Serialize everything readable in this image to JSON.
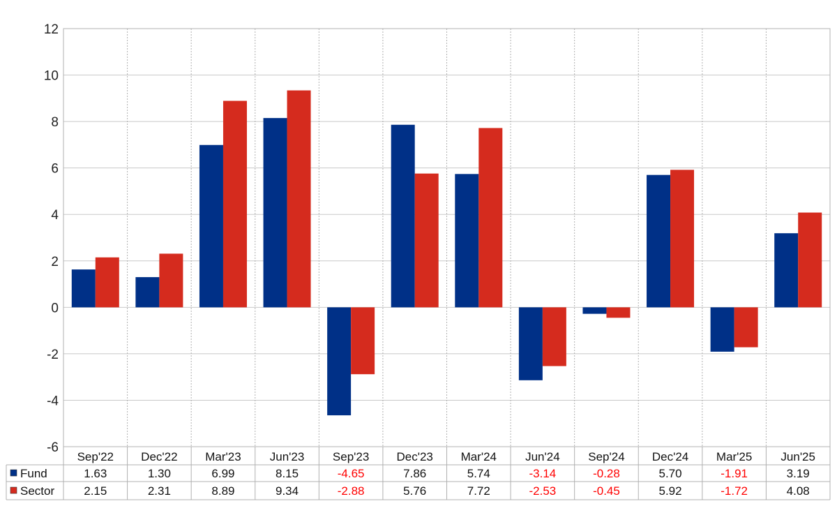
{
  "chart_data": {
    "type": "bar",
    "categories": [
      "Sep'22",
      "Dec'22",
      "Mar'23",
      "Jun'23",
      "Sep'23",
      "Dec'23",
      "Mar'24",
      "Jun'24",
      "Sep'24",
      "Dec'24",
      "Mar'25",
      "Jun'25"
    ],
    "series": [
      {
        "name": "Fund",
        "color": "#003087",
        "values": [
          1.63,
          1.3,
          6.99,
          8.15,
          -4.65,
          7.86,
          5.74,
          -3.14,
          -0.28,
          5.7,
          -1.91,
          3.19
        ],
        "labels": [
          "1.63",
          "1.30",
          "6.99",
          "8.15",
          "-4.65",
          "7.86",
          "5.74",
          "-3.14",
          "-0.28",
          "5.70",
          "-1.91",
          "3.19"
        ]
      },
      {
        "name": "Sector",
        "color": "#d52b1e",
        "values": [
          2.15,
          2.31,
          8.89,
          9.34,
          -2.88,
          5.76,
          7.72,
          -2.53,
          -0.45,
          5.92,
          -1.72,
          4.08
        ],
        "labels": [
          "2.15",
          "2.31",
          "8.89",
          "9.34",
          "-2.88",
          "5.76",
          "7.72",
          "-2.53",
          "-0.45",
          "5.92",
          "-1.72",
          "4.08"
        ]
      }
    ],
    "ylim": [
      -6,
      12
    ],
    "yticks": [
      -6,
      -4,
      -2,
      0,
      2,
      4,
      6,
      8,
      10,
      12
    ],
    "title": "",
    "xlabel": "",
    "ylabel": "",
    "grid": true,
    "legend": "data table below chart",
    "negative_label_color": "#ff0000",
    "positive_label_color": "#111111"
  }
}
